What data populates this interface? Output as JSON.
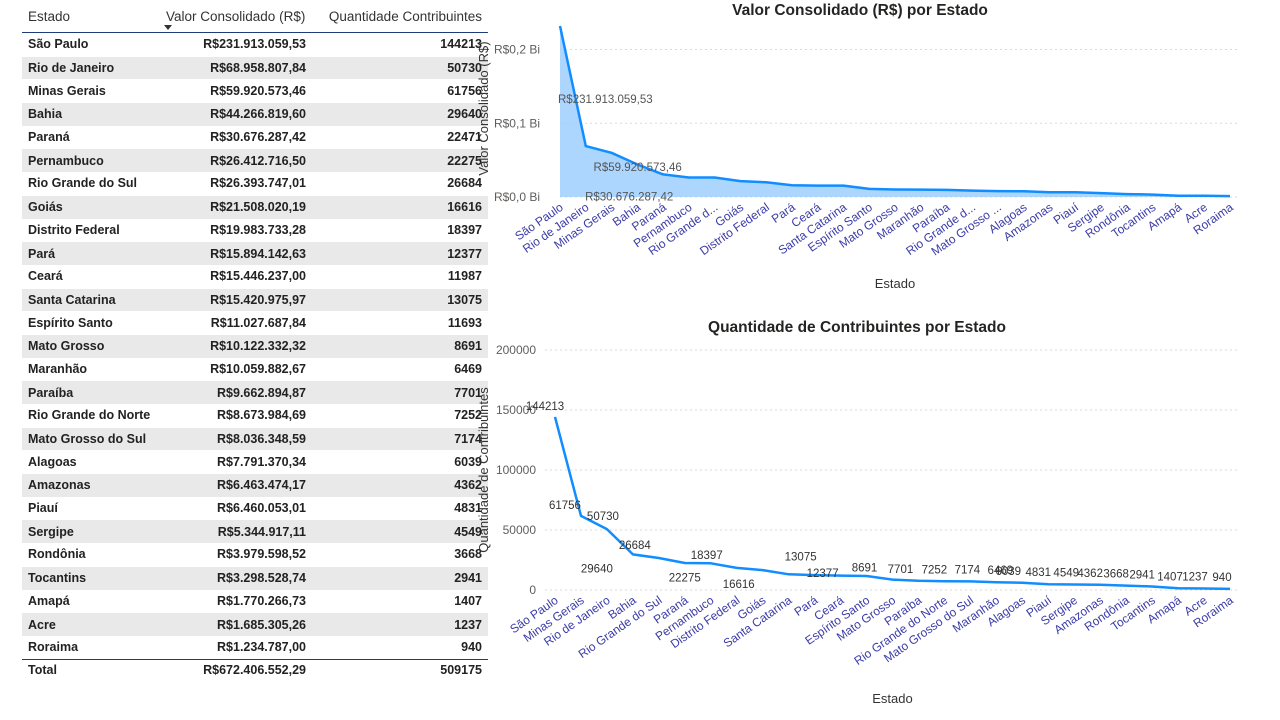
{
  "table": {
    "headers": {
      "estado": "Estado",
      "valor": "Valor Consolidado (R$)",
      "qtd": "Quantidade Contribuintes"
    },
    "rows": [
      {
        "estado": "São Paulo",
        "valor": "R$231.913.059,53",
        "qtd": "144213"
      },
      {
        "estado": "Rio de Janeiro",
        "valor": "R$68.958.807,84",
        "qtd": "50730"
      },
      {
        "estado": "Minas Gerais",
        "valor": "R$59.920.573,46",
        "qtd": "61756"
      },
      {
        "estado": "Bahia",
        "valor": "R$44.266.819,60",
        "qtd": "29640"
      },
      {
        "estado": "Paraná",
        "valor": "R$30.676.287,42",
        "qtd": "22471"
      },
      {
        "estado": "Pernambuco",
        "valor": "R$26.412.716,50",
        "qtd": "22275"
      },
      {
        "estado": "Rio Grande do Sul",
        "valor": "R$26.393.747,01",
        "qtd": "26684"
      },
      {
        "estado": "Goiás",
        "valor": "R$21.508.020,19",
        "qtd": "16616"
      },
      {
        "estado": "Distrito Federal",
        "valor": "R$19.983.733,28",
        "qtd": "18397"
      },
      {
        "estado": "Pará",
        "valor": "R$15.894.142,63",
        "qtd": "12377"
      },
      {
        "estado": "Ceará",
        "valor": "R$15.446.237,00",
        "qtd": "11987"
      },
      {
        "estado": "Santa Catarina",
        "valor": "R$15.420.975,97",
        "qtd": "13075"
      },
      {
        "estado": "Espírito Santo",
        "valor": "R$11.027.687,84",
        "qtd": "11693"
      },
      {
        "estado": "Mato Grosso",
        "valor": "R$10.122.332,32",
        "qtd": "8691"
      },
      {
        "estado": "Maranhão",
        "valor": "R$10.059.882,67",
        "qtd": "6469"
      },
      {
        "estado": "Paraíba",
        "valor": "R$9.662.894,87",
        "qtd": "7701"
      },
      {
        "estado": "Rio Grande do Norte",
        "valor": "R$8.673.984,69",
        "qtd": "7252"
      },
      {
        "estado": "Mato Grosso do Sul",
        "valor": "R$8.036.348,59",
        "qtd": "7174"
      },
      {
        "estado": "Alagoas",
        "valor": "R$7.791.370,34",
        "qtd": "6039"
      },
      {
        "estado": "Amazonas",
        "valor": "R$6.463.474,17",
        "qtd": "4362"
      },
      {
        "estado": "Piauí",
        "valor": "R$6.460.053,01",
        "qtd": "4831"
      },
      {
        "estado": "Sergipe",
        "valor": "R$5.344.917,11",
        "qtd": "4549"
      },
      {
        "estado": "Rondônia",
        "valor": "R$3.979.598,52",
        "qtd": "3668"
      },
      {
        "estado": "Tocantins",
        "valor": "R$3.298.528,74",
        "qtd": "2941"
      },
      {
        "estado": "Amapá",
        "valor": "R$1.770.266,73",
        "qtd": "1407"
      },
      {
        "estado": "Acre",
        "valor": "R$1.685.305,26",
        "qtd": "1237"
      },
      {
        "estado": "Roraima",
        "valor": "R$1.234.787,00",
        "qtd": "940"
      }
    ],
    "total": {
      "label": "Total",
      "valor": "R$672.406.552,29",
      "qtd": "509175"
    }
  },
  "chart_data": [
    {
      "type": "area",
      "title": "Valor Consolidado (R$) por Estado",
      "xlabel": "Estado",
      "ylabel": "Valor Consolidado (R$)",
      "ylim": [
        0,
        240000000
      ],
      "yticks": [
        {
          "value": 0,
          "label": "R$0,0 Bi"
        },
        {
          "value": 100000000,
          "label": "R$0,1 Bi"
        },
        {
          "value": 200000000,
          "label": "R$0,2 Bi"
        }
      ],
      "categories": [
        "São Paulo",
        "Rio de Janeiro",
        "Minas Gerais",
        "Bahia",
        "Paraná",
        "Pernambuco",
        "Rio Grande d...",
        "Goiás",
        "Distrito Federal",
        "Pará",
        "Ceará",
        "Santa Catarina",
        "Espírito Santo",
        "Mato Grosso",
        "Maranhão",
        "Paraíba",
        "Rio Grande d...",
        "Mato Grosso ...",
        "Alagoas",
        "Amazonas",
        "Piauí",
        "Sergipe",
        "Rondônia",
        "Tocantins",
        "Amapá",
        "Acre",
        "Roraima"
      ],
      "values": [
        231913059.53,
        68958807.84,
        59920573.46,
        44266819.6,
        30676287.42,
        26412716.5,
        26393747.01,
        21508020.19,
        19983733.28,
        15894142.63,
        15446237.0,
        15420975.97,
        11027687.84,
        10122332.32,
        10059882.67,
        9662894.87,
        8673984.69,
        8036348.59,
        7791370.34,
        6463474.17,
        6460053.01,
        5344917.11,
        3979598.52,
        3298528.74,
        1770266.73,
        1685305.26,
        1234787.0
      ],
      "data_labels": [
        {
          "index": 0,
          "text": "R$231.913.059,53"
        },
        {
          "index": 2,
          "text": "R$59.920.573,46"
        },
        {
          "index": 4,
          "text": "R$30.676.287,42"
        }
      ]
    },
    {
      "type": "line",
      "title": "Quantidade de Contribuintes por Estado",
      "xlabel": "Estado",
      "ylabel": "Quantidade de Contribuintes",
      "ylim": [
        0,
        200000
      ],
      "yticks": [
        {
          "value": 0,
          "label": "0"
        },
        {
          "value": 50000,
          "label": "50000"
        },
        {
          "value": 100000,
          "label": "100000"
        },
        {
          "value": 150000,
          "label": "150000"
        },
        {
          "value": 200000,
          "label": "200000"
        }
      ],
      "categories": [
        "São Paulo",
        "Minas Gerais",
        "Rio de Janeiro",
        "Bahia",
        "Rio Grande do Sul",
        "Paraná",
        "Pernambuco",
        "Distrito Federal",
        "Goiás",
        "Santa Catarina",
        "Pará",
        "Ceará",
        "Espírito Santo",
        "Mato Grosso",
        "Paraíba",
        "Rio Grande do Norte",
        "Mato Grosso do Sul",
        "Maranhão",
        "Alagoas",
        "Piauí",
        "Sergipe",
        "Amazonas",
        "Rondônia",
        "Tocantins",
        "Amapá",
        "Acre",
        "Roraima"
      ],
      "values": [
        144213,
        61756,
        50730,
        29640,
        26684,
        22471,
        22275,
        18397,
        16616,
        13075,
        12377,
        11987,
        11693,
        8691,
        7701,
        7252,
        7174,
        6469,
        6039,
        4831,
        4549,
        4362,
        3668,
        2941,
        1407,
        1237,
        940
      ],
      "data_labels": [
        {
          "index": 0,
          "text": "144213"
        },
        {
          "index": 1,
          "text": "61756"
        },
        {
          "index": 2,
          "text": "50730"
        },
        {
          "index": 3,
          "text": "29640"
        },
        {
          "index": 4,
          "text": "26684"
        },
        {
          "index": 6,
          "text": "22275"
        },
        {
          "index": 7,
          "text": "18397"
        },
        {
          "index": 8,
          "text": "16616"
        },
        {
          "index": 9,
          "text": "13075"
        },
        {
          "index": 10,
          "text": "12377"
        },
        {
          "index": 13,
          "text": "8691"
        },
        {
          "index": 14,
          "text": "7701"
        },
        {
          "index": 15,
          "text": "7252"
        },
        {
          "index": 16,
          "text": "7174"
        },
        {
          "index": 17,
          "text": "6469"
        },
        {
          "index": 18,
          "text": "6039"
        },
        {
          "index": 19,
          "text": "4831"
        },
        {
          "index": 20,
          "text": "4549"
        },
        {
          "index": 21,
          "text": "4362"
        },
        {
          "index": 22,
          "text": "3668"
        },
        {
          "index": 23,
          "text": "2941"
        },
        {
          "index": 24,
          "text": "1407"
        },
        {
          "index": 25,
          "text": "1237"
        },
        {
          "index": 26,
          "text": "940"
        }
      ]
    }
  ],
  "colors": {
    "line": "#118dff",
    "area": "#9fcfff",
    "grid": "#d9d9d9",
    "header_border": "#1f3d7a"
  }
}
